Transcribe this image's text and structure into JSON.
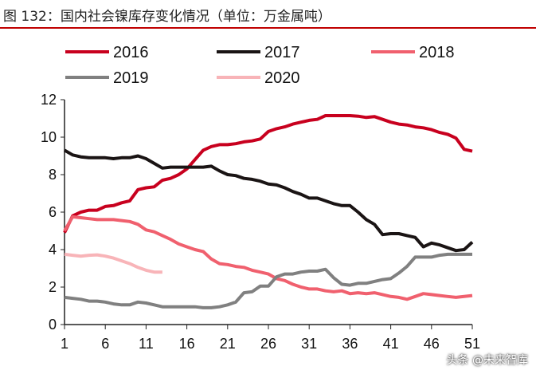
{
  "chart_data": {
    "type": "line",
    "title": "图 132：国内社会镍库存变化情况（单位：万金属吨）",
    "xlabel": "",
    "ylabel": "",
    "xlim": [
      1,
      51
    ],
    "ylim": [
      0,
      12
    ],
    "x_ticks": [
      1,
      6,
      11,
      16,
      21,
      26,
      31,
      36,
      41,
      46,
      51
    ],
    "y_ticks": [
      0,
      2,
      4,
      6,
      8,
      10,
      12
    ],
    "grid": false,
    "legend": "top",
    "series": [
      {
        "name": "2016",
        "color": "#c8001e",
        "values": [
          4.9,
          5.8,
          6.0,
          6.1,
          6.1,
          6.3,
          6.35,
          6.5,
          6.6,
          7.2,
          7.3,
          7.35,
          7.7,
          7.8,
          8.0,
          8.3,
          8.8,
          9.3,
          9.5,
          9.6,
          9.6,
          9.65,
          9.75,
          9.8,
          9.9,
          10.3,
          10.45,
          10.55,
          10.7,
          10.8,
          10.9,
          10.95,
          11.15,
          11.15,
          11.15,
          11.15,
          11.12,
          11.05,
          11.1,
          10.95,
          10.8,
          10.7,
          10.65,
          10.55,
          10.5,
          10.4,
          10.25,
          10.15,
          9.95,
          9.35,
          9.25
        ]
      },
      {
        "name": "2017",
        "color": "#1a1414",
        "values": [
          9.3,
          9.05,
          8.95,
          8.9,
          8.9,
          8.9,
          8.85,
          8.9,
          8.9,
          9.0,
          8.85,
          8.6,
          8.35,
          8.4,
          8.4,
          8.4,
          8.4,
          8.4,
          8.45,
          8.2,
          8.0,
          7.95,
          7.8,
          7.75,
          7.65,
          7.5,
          7.45,
          7.3,
          7.1,
          6.95,
          6.75,
          6.75,
          6.6,
          6.45,
          6.35,
          6.35,
          6.0,
          5.6,
          5.35,
          4.8,
          4.85,
          4.85,
          4.75,
          4.65,
          4.15,
          4.35,
          4.25,
          4.1,
          3.95,
          4.0,
          4.4
        ]
      },
      {
        "name": "2018",
        "color": "#f0606e",
        "values": [
          5.0,
          5.75,
          5.7,
          5.65,
          5.6,
          5.6,
          5.6,
          5.55,
          5.5,
          5.35,
          5.05,
          4.95,
          4.75,
          4.55,
          4.3,
          4.15,
          4.0,
          3.9,
          3.5,
          3.25,
          3.2,
          3.1,
          3.05,
          2.9,
          2.8,
          2.7,
          2.45,
          2.35,
          2.15,
          2.0,
          1.9,
          1.9,
          1.8,
          1.75,
          1.8,
          1.65,
          1.7,
          1.65,
          1.7,
          1.6,
          1.5,
          1.45,
          1.35,
          1.5,
          1.65,
          1.6,
          1.55,
          1.5,
          1.45,
          1.5,
          1.55
        ]
      },
      {
        "name": "2019",
        "color": "#808080",
        "values": [
          1.45,
          1.4,
          1.35,
          1.25,
          1.25,
          1.2,
          1.1,
          1.05,
          1.05,
          1.2,
          1.15,
          1.05,
          0.95,
          0.95,
          0.95,
          0.95,
          0.95,
          0.9,
          0.9,
          0.95,
          1.05,
          1.2,
          1.7,
          1.75,
          2.05,
          2.05,
          2.55,
          2.7,
          2.7,
          2.8,
          2.85,
          2.85,
          2.95,
          2.5,
          2.15,
          2.1,
          2.2,
          2.2,
          2.3,
          2.4,
          2.45,
          2.75,
          3.1,
          3.6,
          3.6,
          3.6,
          3.7,
          3.75,
          3.75,
          3.75,
          3.75
        ]
      },
      {
        "name": "2020",
        "color": "#f8b4b8",
        "values": [
          3.75,
          3.7,
          3.65,
          3.7,
          3.72,
          3.65,
          3.55,
          3.4,
          3.25,
          3.05,
          2.9,
          2.8,
          2.8
        ]
      }
    ]
  },
  "watermark": "头条 @未来智库"
}
